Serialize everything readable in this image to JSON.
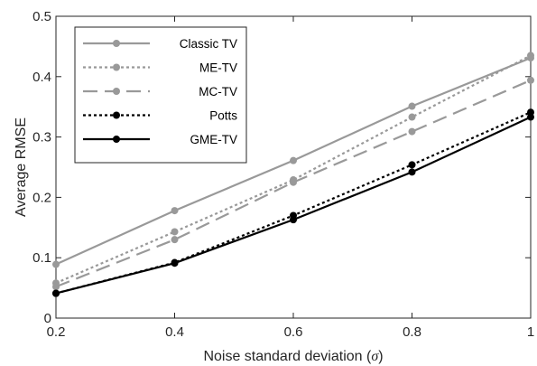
{
  "chart_data": {
    "type": "line",
    "xlabel": "Noise standard deviation (",
    "xlabel_symbol": "σ",
    "xlabel_close": ")",
    "ylabel": "Average RMSE",
    "xlim": [
      0.2,
      1
    ],
    "ylim": [
      0,
      0.5
    ],
    "x": [
      0.2,
      0.4,
      0.6,
      0.8,
      1
    ],
    "xticks": [
      "0.2",
      "0.4",
      "0.6",
      "0.8",
      "1"
    ],
    "yticks": [
      "0",
      "0.1",
      "0.2",
      "0.3",
      "0.4",
      "0.5"
    ],
    "grid": false,
    "legend_position": "top-left",
    "series": [
      {
        "name": "Classic TV",
        "values": [
          0.089,
          0.178,
          0.261,
          0.351,
          0.431
        ],
        "color": "#999999",
        "dash": "solid"
      },
      {
        "name": "ME-TV",
        "values": [
          0.058,
          0.143,
          0.229,
          0.333,
          0.435
        ],
        "color": "#999999",
        "dash": "dotted"
      },
      {
        "name": "MC-TV",
        "values": [
          0.052,
          0.13,
          0.225,
          0.309,
          0.394
        ],
        "color": "#999999",
        "dash": "dashed"
      },
      {
        "name": "Potts",
        "values": [
          0.041,
          0.092,
          0.17,
          0.254,
          0.341
        ],
        "color": "#000000",
        "dash": "dotted"
      },
      {
        "name": "GME-TV",
        "values": [
          0.041,
          0.091,
          0.163,
          0.242,
          0.333
        ],
        "color": "#000000",
        "dash": "solid"
      }
    ]
  }
}
